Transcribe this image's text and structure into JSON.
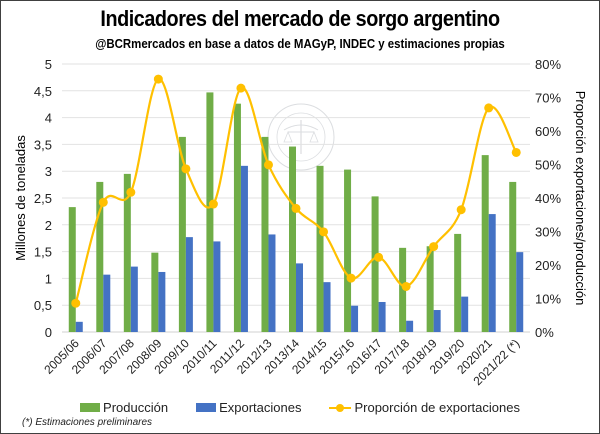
{
  "chart_data": {
    "type": "bar",
    "title": "Indicadores del mercado de sorgo argentino",
    "subtitle": "@BCRmercados en base a datos de MAGyP, INDEC y estimaciones propias",
    "xlabel": "",
    "ylabel": "Millones de toneladas",
    "y2label": "Proporción exportaciones/producción",
    "ylim": [
      0,
      5
    ],
    "y2lim": [
      0,
      0.8
    ],
    "yticks": [
      "0",
      "0,5",
      "1",
      "1,5",
      "2",
      "2,5",
      "3",
      "3,5",
      "4",
      "4,5",
      "5"
    ],
    "y2ticks": [
      "0%",
      "10%",
      "20%",
      "30%",
      "40%",
      "50%",
      "60%",
      "70%",
      "80%"
    ],
    "grid": true,
    "legend_position": "bottom",
    "categories": [
      "2005/06",
      "2006/07",
      "2007/08",
      "2008/09",
      "2009/10",
      "2010/11",
      "2011/12",
      "2012/13",
      "2013/14",
      "2014/15",
      "2015/16",
      "2016/17",
      "2017/18",
      "2018/19",
      "2019/20",
      "2020/21",
      "2021/22 (*)"
    ],
    "series": [
      {
        "name": "Producción",
        "type": "bar",
        "axis": "left",
        "color": "#70ad47",
        "values": [
          2.33,
          2.8,
          2.95,
          1.48,
          3.64,
          4.47,
          4.26,
          3.64,
          3.46,
          3.1,
          3.03,
          2.53,
          1.57,
          1.6,
          1.83,
          3.3,
          2.8
        ]
      },
      {
        "name": "Exportaciones",
        "type": "bar",
        "axis": "left",
        "color": "#4472c4",
        "values": [
          0.19,
          1.07,
          1.22,
          1.12,
          1.77,
          1.69,
          3.1,
          1.82,
          1.28,
          0.93,
          0.49,
          0.56,
          0.21,
          0.41,
          0.66,
          2.2,
          1.49
        ]
      },
      {
        "name": "Proporción de exportaciones",
        "type": "line",
        "axis": "right",
        "color": "#ffc000",
        "values": [
          0.086,
          0.387,
          0.417,
          0.755,
          0.487,
          0.382,
          0.728,
          0.499,
          0.369,
          0.299,
          0.161,
          0.223,
          0.136,
          0.255,
          0.365,
          0.669,
          0.536
        ]
      }
    ],
    "footnote": "(*) Estimaciones preliminares",
    "watermark": "BOLSA DE COMERCIO DE ROSARIO"
  }
}
